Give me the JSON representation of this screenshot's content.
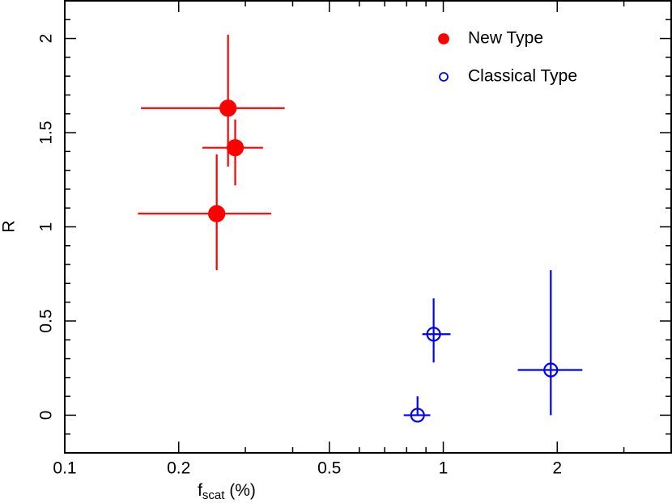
{
  "chart_data": {
    "type": "scatter",
    "xlabel": [
      "f",
      "scat",
      " (%)"
    ],
    "ylabel": "R",
    "xscale": "log",
    "xlim": [
      0.1,
      4
    ],
    "ylim": [
      -0.2,
      2.2
    ],
    "xticks": [
      0.1,
      0.2,
      0.5,
      1,
      2
    ],
    "xminorticks": [
      0.3,
      0.4,
      0.6,
      0.7,
      0.8,
      0.9,
      3,
      4
    ],
    "yticks": [
      0,
      0.5,
      1,
      1.5,
      2
    ],
    "yminorticks": [
      -0.1,
      0.1,
      0.2,
      0.3,
      0.4,
      0.6,
      0.7,
      0.8,
      0.9,
      1.1,
      1.2,
      1.3,
      1.4,
      1.6,
      1.7,
      1.8,
      1.9,
      2.1
    ],
    "legend": "upper right",
    "series": [
      {
        "name": "New Type",
        "color": "#ff0000",
        "marker": "filled",
        "x": [
          0.27,
          0.282,
          0.252
        ],
        "values": [
          1.63,
          1.42,
          1.07
        ],
        "x_low": [
          0.159,
          0.231,
          0.156
        ],
        "x_high": [
          0.381,
          0.334,
          0.351
        ],
        "y_low": [
          1.32,
          1.22,
          0.77
        ],
        "y_high": [
          2.02,
          1.57,
          1.385
        ]
      },
      {
        "name": "Classical Type",
        "color": "#0000ff",
        "marker": "open",
        "x": [
          0.855,
          0.943,
          1.923
        ],
        "values": [
          0.0,
          0.43,
          0.24
        ],
        "x_low": [
          0.786,
          0.88,
          1.573
        ],
        "x_high": [
          0.924,
          1.045,
          2.33
        ],
        "y_low": [
          0.0,
          0.28,
          0.0
        ],
        "y_high": [
          0.1,
          0.62,
          0.77
        ]
      }
    ]
  }
}
